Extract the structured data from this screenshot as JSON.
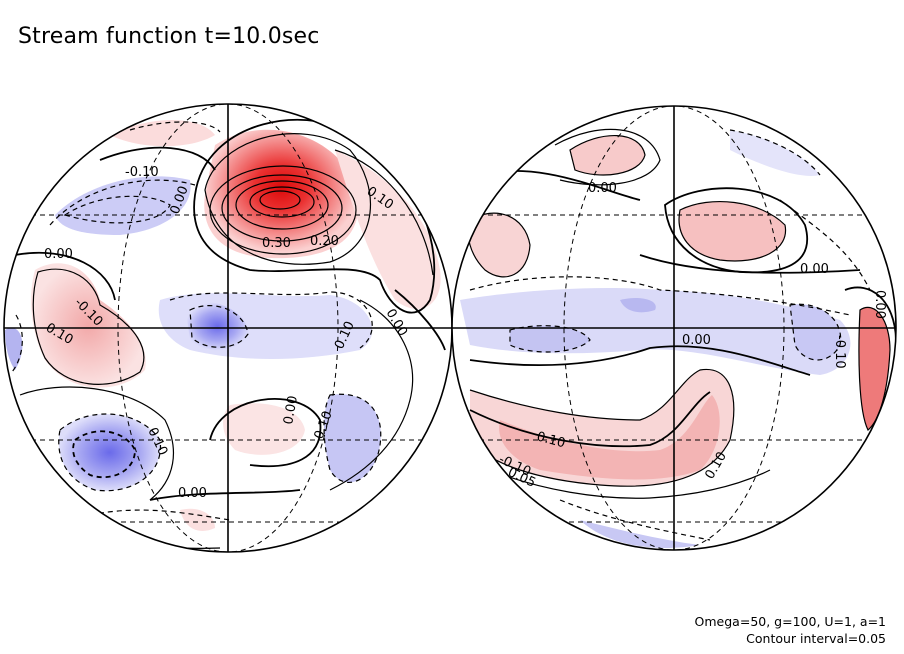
{
  "figure": {
    "title": "Stream function t=10.0sec",
    "params": "Omega=50, g=100, U=1, a=1",
    "contour_interval": "Contour interval=0.05"
  },
  "colors": {
    "positive_strong": "#e01010",
    "positive_light": "#f8d8d8",
    "negative_strong": "#5a5ae6",
    "negative_light": "#e4e4fa",
    "background": "#ffffff"
  },
  "contour_labels": {
    "left": [
      "-0.10",
      "0.00",
      "0.10",
      "0.00",
      "-0.10",
      "0.10",
      "0.00",
      "0.30",
      "0.20",
      "0.10",
      "0.00",
      "0.10",
      "0.10",
      "0.00"
    ],
    "right": [
      "0.00",
      "0.00",
      "0.00",
      "0.00",
      "-0.10",
      "0.10",
      "-0.10",
      "0.10",
      "0.05"
    ]
  }
}
